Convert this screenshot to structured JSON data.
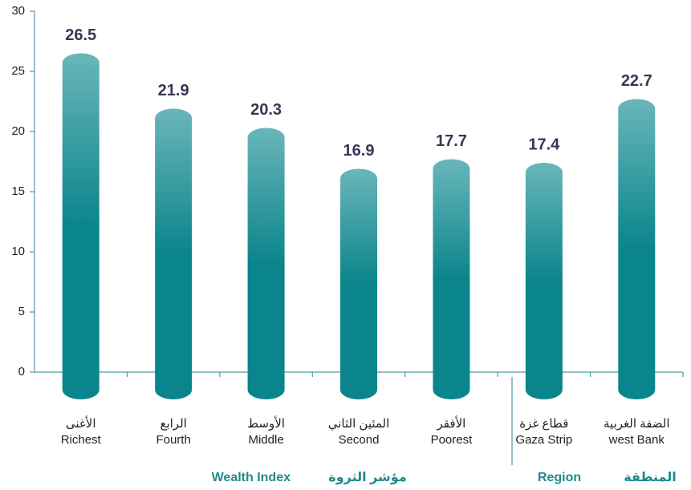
{
  "chart_data": {
    "type": "bar",
    "categories": [
      [
        "الأغنى",
        "Richest"
      ],
      [
        "الرابع",
        "Fourth"
      ],
      [
        "الأوسط",
        "Middle"
      ],
      [
        "المئين الثاني",
        "Second"
      ],
      [
        "الأفقر",
        "Poorest"
      ],
      [
        "قطاع غزة",
        "Gaza Strip"
      ],
      [
        "الضفة الغربية",
        "west Bank"
      ]
    ],
    "values": [
      26.5,
      21.9,
      20.3,
      16.9,
      17.7,
      17.4,
      22.7
    ],
    "groups": [
      [
        "Wealth Index",
        "مؤشر الثروة"
      ],
      [
        "Region",
        "المنطقة"
      ]
    ],
    "color": "#0a858b",
    "ylim": [
      0,
      30
    ],
    "yticks": [
      0,
      5,
      10,
      15,
      20,
      25,
      30
    ]
  }
}
